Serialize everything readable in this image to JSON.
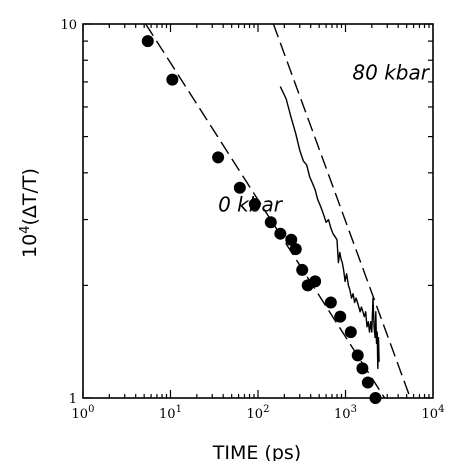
{
  "chart_data": {
    "type": "scatter",
    "xlabel": "TIME (ps)",
    "ylabel": "10⁴(ΔT/T)",
    "xscale": "log",
    "yscale": "log",
    "xlim": [
      1,
      10000
    ],
    "ylim": [
      1,
      10
    ],
    "x_ticks": [
      {
        "value": 1,
        "base": "10",
        "exp": "0"
      },
      {
        "value": 10,
        "base": "10",
        "exp": "1"
      },
      {
        "value": 100,
        "base": "10",
        "exp": "2"
      },
      {
        "value": 1000,
        "base": "10",
        "exp": "3"
      },
      {
        "value": 10000,
        "base": "10",
        "exp": "4"
      }
    ],
    "y_ticks": [
      {
        "value": 1,
        "label": "1"
      },
      {
        "value": 10,
        "label": "10"
      }
    ],
    "grid": false,
    "series": [
      {
        "name": "0 kbar",
        "kind": "points",
        "color": "#000000",
        "x": [
          5.5,
          10.5,
          35,
          62,
          92,
          140,
          180,
          240,
          270,
          320,
          370,
          450,
          680,
          870,
          1150,
          1380,
          1560,
          1800,
          2200
        ],
        "y": [
          9.0,
          7.1,
          4.4,
          3.65,
          3.3,
          2.95,
          2.75,
          2.65,
          2.5,
          2.2,
          2.0,
          2.05,
          1.8,
          1.65,
          1.5,
          1.3,
          1.2,
          1.1,
          1.0
        ]
      },
      {
        "name": "0 kbar fit",
        "kind": "dashed",
        "color": "#000000",
        "x": [
          5.2,
          2800
        ],
        "y": [
          10,
          1
        ]
      },
      {
        "name": "80 kbar",
        "kind": "line",
        "color": "#000000",
        "x": [
          180,
          210,
          240,
          270,
          300,
          330,
          360,
          390,
          420,
          450,
          480,
          520,
          560,
          600,
          640,
          680,
          720,
          760,
          800,
          830,
          860,
          890,
          920,
          950,
          990,
          1030,
          1080,
          1120,
          1170,
          1220,
          1270,
          1320,
          1370,
          1420,
          1470,
          1520,
          1580,
          1640,
          1700,
          1760,
          1820,
          1880,
          1940,
          2000,
          2060,
          2120,
          2180,
          2220,
          2260,
          2300,
          2340,
          2380,
          2420
        ],
        "y": [
          6.8,
          6.3,
          5.6,
          5.1,
          4.6,
          4.3,
          4.2,
          3.9,
          3.75,
          3.6,
          3.4,
          3.25,
          3.1,
          2.95,
          3.0,
          2.85,
          2.75,
          2.7,
          2.65,
          2.3,
          2.45,
          2.35,
          2.3,
          2.2,
          2.05,
          2.15,
          2.0,
          1.95,
          1.85,
          1.9,
          1.8,
          1.85,
          1.8,
          1.75,
          1.7,
          1.75,
          1.7,
          1.65,
          1.7,
          1.55,
          1.6,
          1.5,
          1.6,
          1.5,
          1.85,
          1.55,
          1.45,
          1.7,
          1.4,
          1.5,
          1.2,
          1.45,
          1.25
        ]
      },
      {
        "name": "80 kbar fit",
        "kind": "dashed",
        "color": "#000000",
        "x": [
          150,
          5500
        ],
        "y": [
          10,
          1
        ]
      }
    ],
    "annotations": [
      {
        "text": "80 kbar",
        "x": 1200,
        "y": 7.1
      },
      {
        "text": "0 kbar",
        "x": 35,
        "y": 3.15
      }
    ]
  }
}
